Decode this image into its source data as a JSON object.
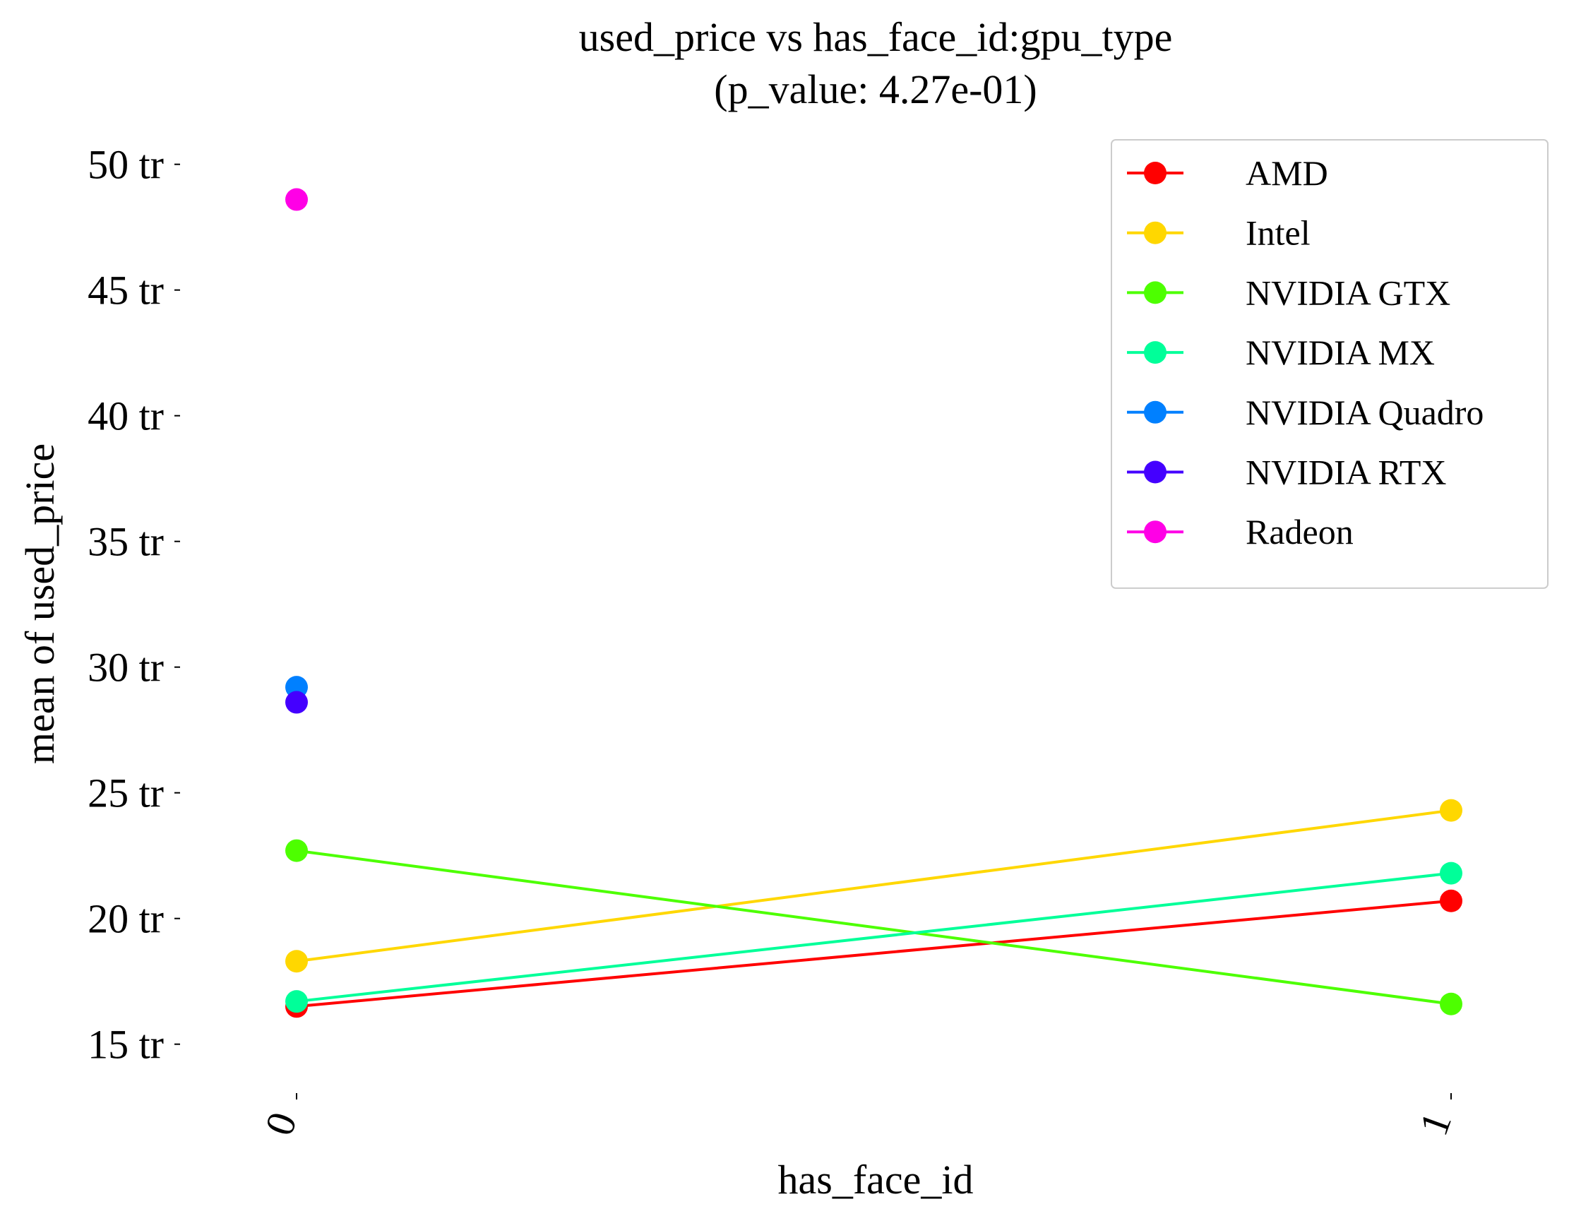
{
  "chart_data": {
    "type": "line",
    "title": "used_price vs has_face_id:gpu_type",
    "subtitle": "(p_value: 4.27e-01)",
    "xlabel": "has_face_id",
    "ylabel": "mean of used_price",
    "categories": [
      "0",
      "1"
    ],
    "ylim": [
      12.8,
      51.5
    ],
    "yticks": [
      15,
      20,
      25,
      30,
      35,
      40,
      45,
      50
    ],
    "ytick_labels": [
      "15 tr",
      "20 tr",
      "25 tr",
      "30 tr",
      "35 tr",
      "40 tr",
      "45 tr",
      "50 tr"
    ],
    "grid": false,
    "legend_position": "top-right",
    "series": [
      {
        "name": "AMD",
        "color": "#ff0000",
        "values": [
          16.5,
          20.7
        ]
      },
      {
        "name": "Intel",
        "color": "#ffd700",
        "values": [
          18.3,
          24.3
        ]
      },
      {
        "name": "NVIDIA GTX",
        "color": "#4dff00",
        "values": [
          22.7,
          16.6
        ]
      },
      {
        "name": "NVIDIA MX",
        "color": "#00ff99",
        "values": [
          16.7,
          21.8
        ]
      },
      {
        "name": "NVIDIA Quadro",
        "color": "#0080ff",
        "values": [
          29.2,
          null
        ]
      },
      {
        "name": "NVIDIA RTX",
        "color": "#4400ff",
        "values": [
          28.6,
          null
        ]
      },
      {
        "name": "Radeon",
        "color": "#ff00e6",
        "values": [
          48.6,
          null
        ]
      }
    ]
  }
}
